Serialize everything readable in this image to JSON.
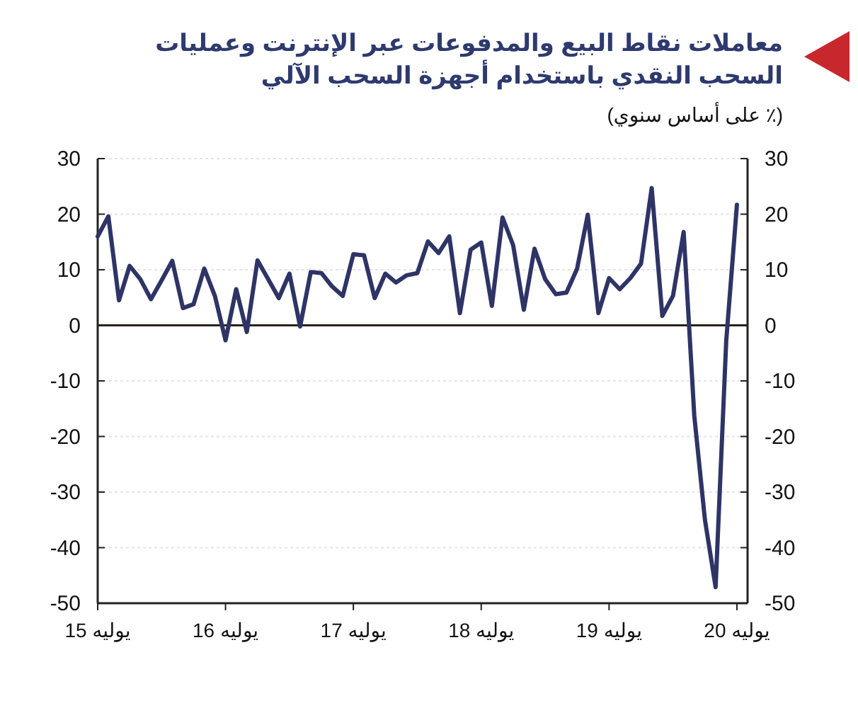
{
  "chart_data": {
    "type": "line",
    "title": "معاملات نقاط البيع والمدفوعات عبر الإنترنت وعمليات السحب النقدي باستخدام أجهزة السحب الآلي",
    "subtitle": "(٪ على أساس سنوي)",
    "x": [
      "2015-07",
      "2015-08",
      "2015-09",
      "2015-10",
      "2015-11",
      "2015-12",
      "2016-01",
      "2016-02",
      "2016-03",
      "2016-04",
      "2016-05",
      "2016-06",
      "2016-07",
      "2016-08",
      "2016-09",
      "2016-10",
      "2016-11",
      "2016-12",
      "2017-01",
      "2017-02",
      "2017-03",
      "2017-04",
      "2017-05",
      "2017-06",
      "2017-07",
      "2017-08",
      "2017-09",
      "2017-10",
      "2017-11",
      "2017-12",
      "2018-01",
      "2018-02",
      "2018-03",
      "2018-04",
      "2018-05",
      "2018-06",
      "2018-07",
      "2018-08",
      "2018-09",
      "2018-10",
      "2018-11",
      "2018-12",
      "2019-01",
      "2019-02",
      "2019-03",
      "2019-04",
      "2019-05",
      "2019-06",
      "2019-07",
      "2019-08",
      "2019-09",
      "2019-10",
      "2019-11",
      "2019-12",
      "2020-01",
      "2020-02",
      "2020-03",
      "2020-04",
      "2020-05",
      "2020-06",
      "2020-07"
    ],
    "series": [
      {
        "color": "#2f3466",
        "values": [
          16,
          19.6,
          4.5,
          10.7,
          8.3,
          4.7,
          8.1,
          11.6,
          3.1,
          3.8,
          10.2,
          5.3,
          -2.7,
          6.5,
          -1.2,
          11.7,
          8.3,
          4.9,
          9.3,
          -0.2,
          9.6,
          9.4,
          7,
          5.3,
          12.8,
          12.6,
          4.9,
          9.3,
          7.7,
          9,
          9.4,
          15.1,
          13,
          16,
          2.2,
          13.6,
          14.9,
          3.5,
          19.4,
          14.4,
          2.8,
          13.8,
          8.3,
          5.6,
          5.9,
          10.2,
          19.9,
          2.2,
          8.5,
          6.5,
          8.5,
          11.1,
          24.7,
          1.7,
          5.3,
          16.8,
          -16.3,
          -35,
          -47.1,
          -2.7,
          21.7
        ]
      }
    ],
    "xlim": [
      "2015-07",
      "2020-08"
    ],
    "xticks": [
      {
        "value": "2015-07",
        "label": "يوليه 15"
      },
      {
        "value": "2016-07",
        "label": "يوليه 16"
      },
      {
        "value": "2017-07",
        "label": "يوليه 17"
      },
      {
        "value": "2018-07",
        "label": "يوليه 18"
      },
      {
        "value": "2019-07",
        "label": "يوليه 19"
      },
      {
        "value": "2020-07",
        "label": "يوليه 20"
      }
    ],
    "ylim": [
      -50,
      30
    ],
    "yticks": [
      -50,
      -40,
      -30,
      -20,
      -10,
      0,
      10,
      20,
      30
    ],
    "y2lim": [
      -50,
      30
    ],
    "y2ticks": [
      -50,
      -40,
      -30,
      -20,
      -10,
      0,
      10,
      20,
      30
    ],
    "ref_lines": [
      {
        "axis": "y",
        "value": 0,
        "color": "#2b2118"
      }
    ],
    "grid": "y",
    "marker": "none",
    "line_style": "solid"
  }
}
